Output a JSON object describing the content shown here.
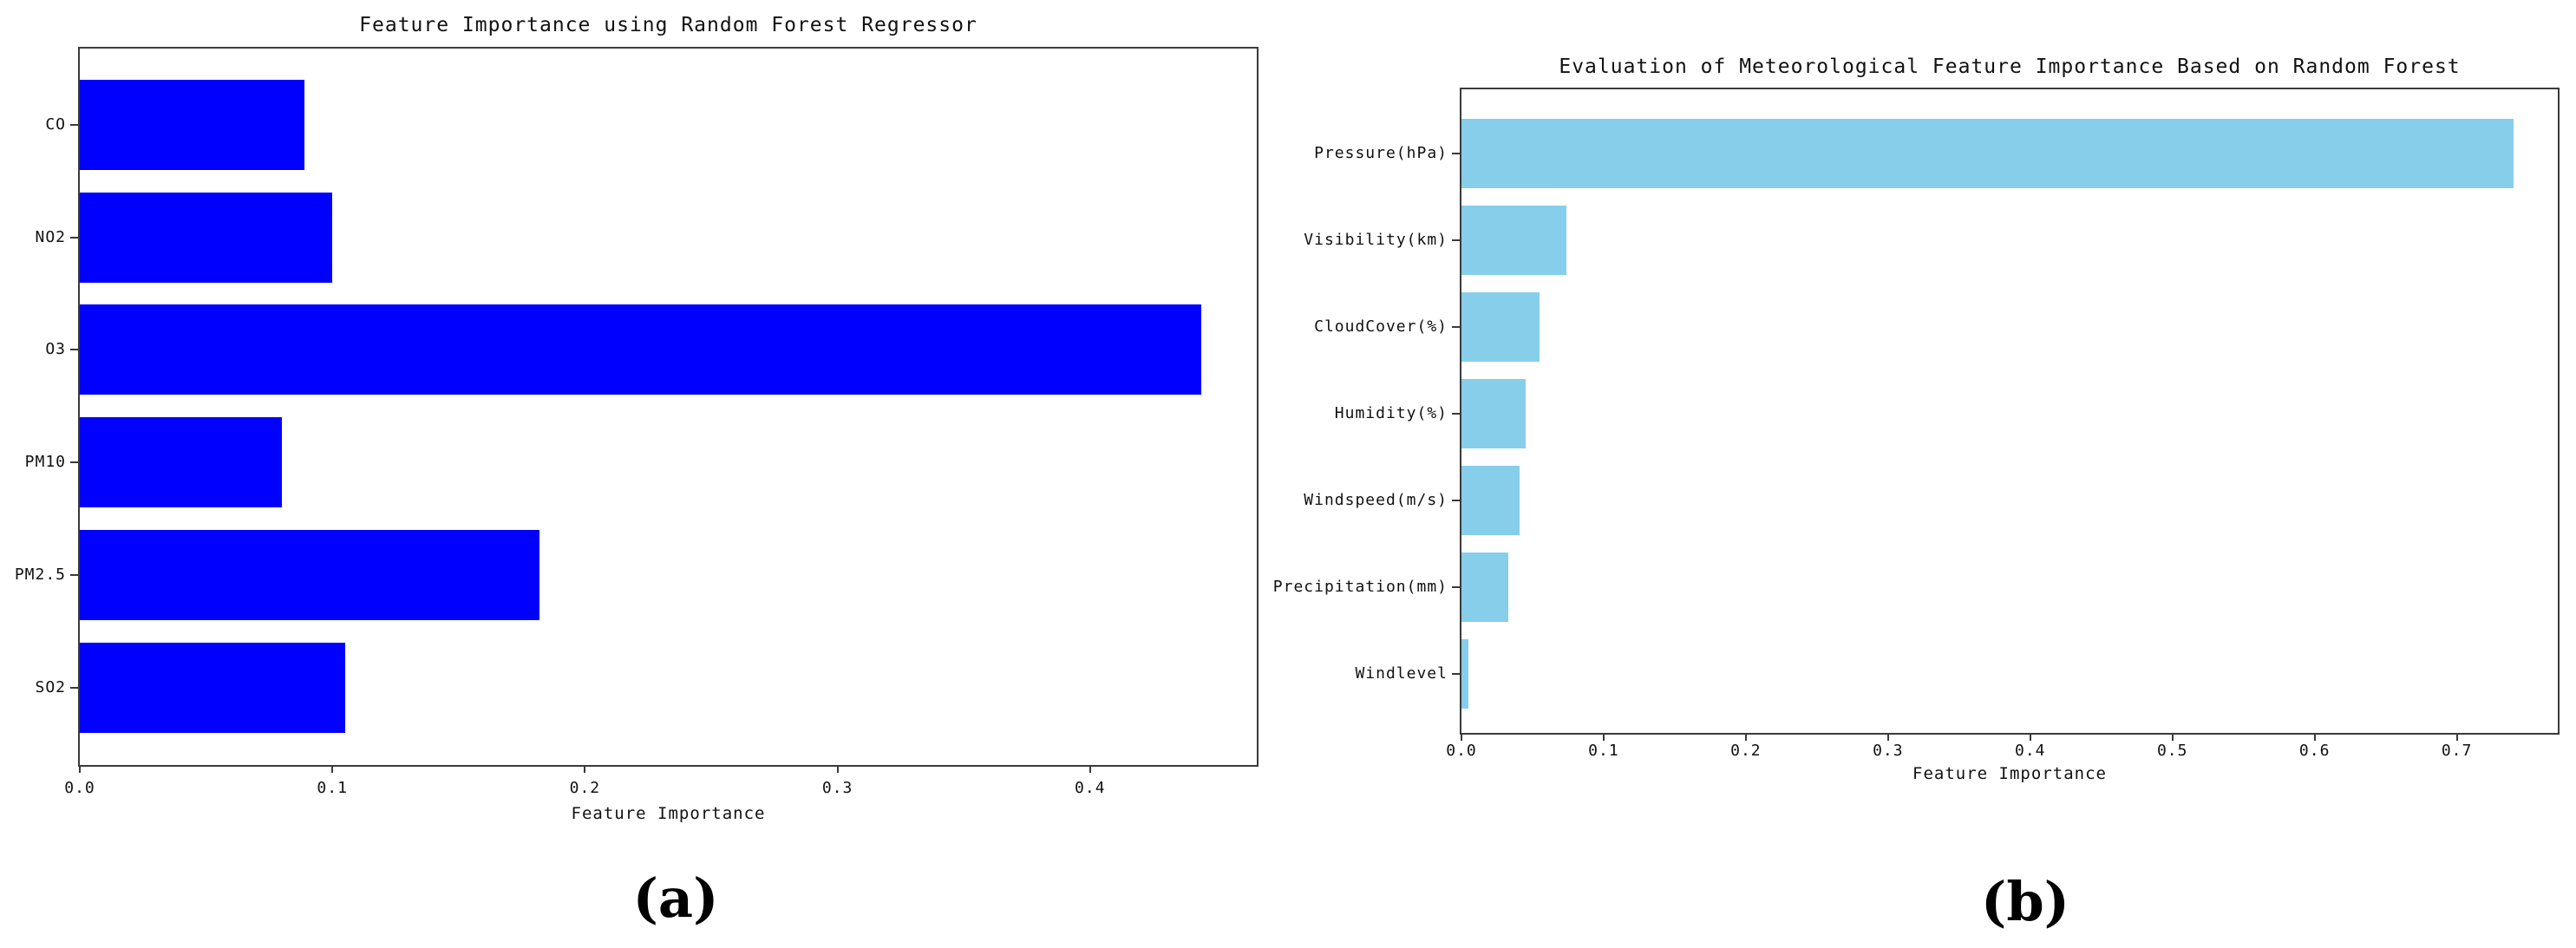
{
  "figure": {
    "background": "#ffffff",
    "axis_color": "#3a3a3a",
    "text_color": "#111111"
  },
  "captions": {
    "a": "(a)",
    "b": "(b)"
  },
  "chart_data": [
    {
      "id": "a",
      "type": "bar",
      "orientation": "horizontal",
      "title": "Feature Importance using Random Forest Regressor",
      "xlabel": "Feature Importance",
      "categories": [
        "CO",
        "NO2",
        "O3",
        "PM10",
        "PM2.5",
        "SO2"
      ],
      "values": [
        0.089,
        0.1,
        0.444,
        0.08,
        0.182,
        0.105
      ],
      "bar_color": "#0000ff",
      "xticks": [
        "0.0",
        "0.1",
        "0.2",
        "0.3",
        "0.4"
      ],
      "xtick_values": [
        0.0,
        0.1,
        0.2,
        0.3,
        0.4
      ],
      "xlim": [
        0,
        0.466
      ],
      "grid": false,
      "legend": "none",
      "caption": "(a)"
    },
    {
      "id": "b",
      "type": "bar",
      "orientation": "horizontal",
      "title": "Evaluation of Meteorological Feature Importance Based on Random Forest",
      "xlabel": "Feature Importance",
      "categories": [
        "Pressure(hPa)",
        "Visibility(km)",
        "CloudCover(%)",
        "Humidity(%)",
        "Windspeed(m/s)",
        "Precipitation(mm)",
        "Windlevel"
      ],
      "values": [
        0.74,
        0.074,
        0.055,
        0.045,
        0.041,
        0.033,
        0.005
      ],
      "bar_color": "#87ceeb",
      "xticks": [
        "0.0",
        "0.1",
        "0.2",
        "0.3",
        "0.4",
        "0.5",
        "0.6",
        "0.7"
      ],
      "xtick_values": [
        0.0,
        0.1,
        0.2,
        0.3,
        0.4,
        0.5,
        0.6,
        0.7
      ],
      "xlim": [
        0,
        0.771
      ],
      "grid": false,
      "legend": "none",
      "caption": "(b)"
    }
  ]
}
